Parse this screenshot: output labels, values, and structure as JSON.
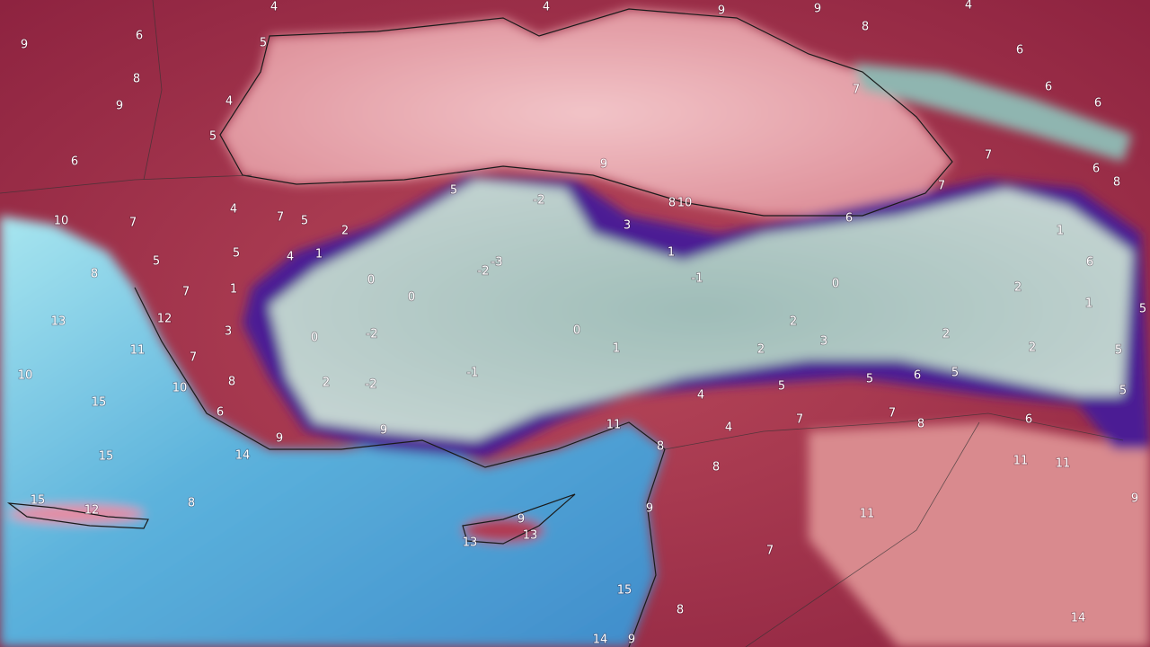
{
  "map_labels": [
    4,
    6,
    5,
    9,
    8,
    9,
    4,
    5,
    6,
    4,
    9,
    9,
    8,
    4,
    6,
    6,
    6,
    7,
    7,
    6,
    8,
    7,
    6,
    9,
    8,
    10,
    -2,
    5,
    3,
    1,
    -1,
    0,
    1,
    6,
    2,
    1,
    5,
    5,
    5,
    2,
    2,
    3,
    2,
    2,
    5,
    6,
    5,
    5,
    4,
    7,
    7,
    8,
    6,
    4,
    11,
    8,
    8,
    11,
    11,
    9,
    11,
    9,
    7,
    15,
    8,
    14,
    9,
    14,
    9,
    13,
    13,
    15,
    12,
    8,
    14,
    15,
    15,
    10,
    10,
    6,
    8,
    7,
    11,
    12,
    13,
    7,
    3,
    1,
    5,
    8,
    10,
    7,
    5,
    4,
    7,
    5,
    2,
    4,
    1,
    0,
    0,
    -2,
    -3,
    0,
    -2,
    2,
    -2,
    -1,
    0,
    1,
    9,
    9
  ]
}
